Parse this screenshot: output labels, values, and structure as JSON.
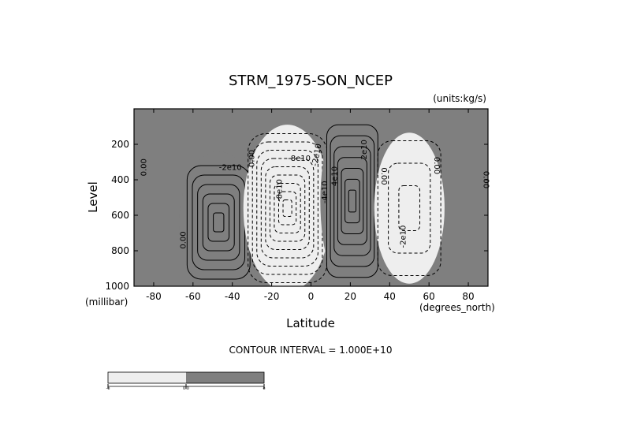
{
  "chart_data": {
    "type": "contour",
    "title": "STRM_1975-SON_NCEP",
    "units_label": "(units:kg/s)",
    "xlabel": "Latitude",
    "ylabel": "Level",
    "x_unit_label": "(degrees_north)",
    "y_unit_label": "(millibar)",
    "xlim": [
      -90,
      90
    ],
    "ylim": [
      1000,
      0
    ],
    "x_ticks": [
      -80,
      -60,
      -40,
      -20,
      0,
      20,
      40,
      60,
      80
    ],
    "y_ticks": [
      200,
      400,
      600,
      800,
      1000
    ],
    "contour_interval_text": "CONTOUR INTERVAL = 1.000E+10",
    "contour_interval": 10000000000.0,
    "colors": {
      "positive_fill": "#7f7f7f",
      "negative_fill": "#eeeeee",
      "background": "#ffffff"
    },
    "cells": [
      {
        "sign": "positive",
        "lat_center": -47,
        "p_center": 640,
        "lat_halfwidth": 16,
        "p_halfwidth": 320,
        "peak": 50000000000.0,
        "nested_contours": 6
      },
      {
        "sign": "negative",
        "lat_center": -12,
        "p_center": 560,
        "lat_halfwidth": 20,
        "p_halfwidth": 420,
        "peak": -90000000000.0,
        "nested_contours": 9
      },
      {
        "sign": "positive",
        "lat_center": 21,
        "p_center": 520,
        "lat_halfwidth": 13,
        "p_halfwidth": 430,
        "peak": 70000000000.0,
        "nested_contours": 7
      },
      {
        "sign": "negative",
        "lat_center": 50,
        "p_center": 560,
        "lat_halfwidth": 16,
        "p_halfwidth": 380,
        "peak": -30000000000.0,
        "nested_contours": 3
      }
    ],
    "contour_labels": [
      {
        "text": "0.00",
        "lat": -85,
        "p": 330,
        "rotate": -90
      },
      {
        "text": "0.00",
        "lat": -65,
        "p": 740,
        "rotate": -90
      },
      {
        "text": "-2e10",
        "lat": -41,
        "p": 330,
        "rotate": 0
      },
      {
        "text": "0.00",
        "lat": -30,
        "p": 280,
        "rotate": -90
      },
      {
        "text": "-8e10",
        "lat": -6,
        "p": 280,
        "rotate": 0
      },
      {
        "text": "-8e10",
        "lat": -16,
        "p": 460,
        "rotate": -90
      },
      {
        "text": "-2e10",
        "lat": 3,
        "p": 260,
        "rotate": -80
      },
      {
        "text": "-4e10",
        "lat": 7,
        "p": 470,
        "rotate": -90
      },
      {
        "text": "2e10",
        "lat": 27,
        "p": 230,
        "rotate": -90
      },
      {
        "text": "4e10",
        "lat": 12,
        "p": 380,
        "rotate": -90
      },
      {
        "text": "0.00",
        "lat": 37,
        "p": 380,
        "rotate": 90
      },
      {
        "text": "0.00",
        "lat": 64,
        "p": 320,
        "rotate": 90
      },
      {
        "text": "-2e10",
        "lat": 47,
        "p": 720,
        "rotate": -90
      },
      {
        "text": "0.00",
        "lat": 89,
        "p": 400,
        "rotate": 90
      }
    ],
    "colorbar": {
      "segments": [
        {
          "range": [
            -100000000000,
            0
          ],
          "color": "#eeeeee"
        },
        {
          "range": [
            0,
            100000000000
          ],
          "color": "#7f7f7f"
        }
      ],
      "tick_labels": [
        "-e",
        "0.0",
        "e"
      ]
    }
  }
}
